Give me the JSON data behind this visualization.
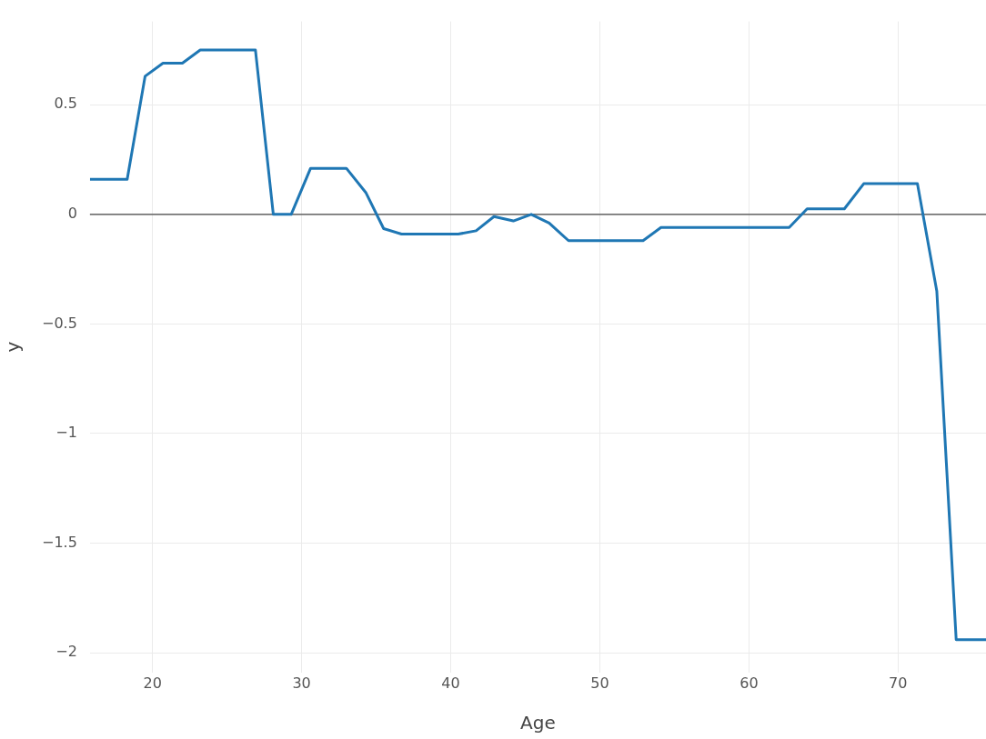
{
  "chart_data": {
    "type": "line",
    "xlabel": "Age",
    "ylabel": "y",
    "x": [
      15.8,
      18.3,
      19.5,
      20.7,
      22.0,
      23.2,
      26.9,
      28.1,
      29.3,
      30.6,
      33.0,
      34.3,
      35.5,
      36.7,
      40.5,
      41.7,
      42.9,
      44.2,
      45.4,
      46.6,
      47.9,
      52.9,
      54.1,
      62.7,
      63.9,
      66.4,
      67.7,
      71.3,
      72.6,
      73.9,
      75.9
    ],
    "series": [
      {
        "color": "#1f77b4",
        "values": [
          0.16,
          0.16,
          0.63,
          0.69,
          0.69,
          0.75,
          0.75,
          0,
          0,
          0.21,
          0.21,
          0.1,
          -0.065,
          -0.09,
          -0.09,
          -0.075,
          -0.01,
          -0.03,
          0,
          -0.04,
          -0.12,
          -0.12,
          -0.06,
          -0.06,
          0.025,
          0.025,
          0.14,
          0.14,
          -0.35,
          -1.94,
          -1.94
        ]
      }
    ],
    "xlim": [
      15.8,
      75.9
    ],
    "xticks": [
      20,
      30,
      40,
      50,
      60,
      70
    ],
    "ylim": [
      -2.09,
      0.88
    ],
    "yticks": [
      {
        "value": -2,
        "label": "−2"
      },
      {
        "value": -1.5,
        "label": "−1.5"
      },
      {
        "value": -1,
        "label": "−1"
      },
      {
        "value": -0.5,
        "label": "−0.5"
      },
      0,
      0.5
    ],
    "ref_lines": [
      {
        "axis": "y",
        "value": 0,
        "color": "#444444"
      }
    ],
    "grid": true,
    "legend": false,
    "marker": "none",
    "line_style": "solid"
  }
}
